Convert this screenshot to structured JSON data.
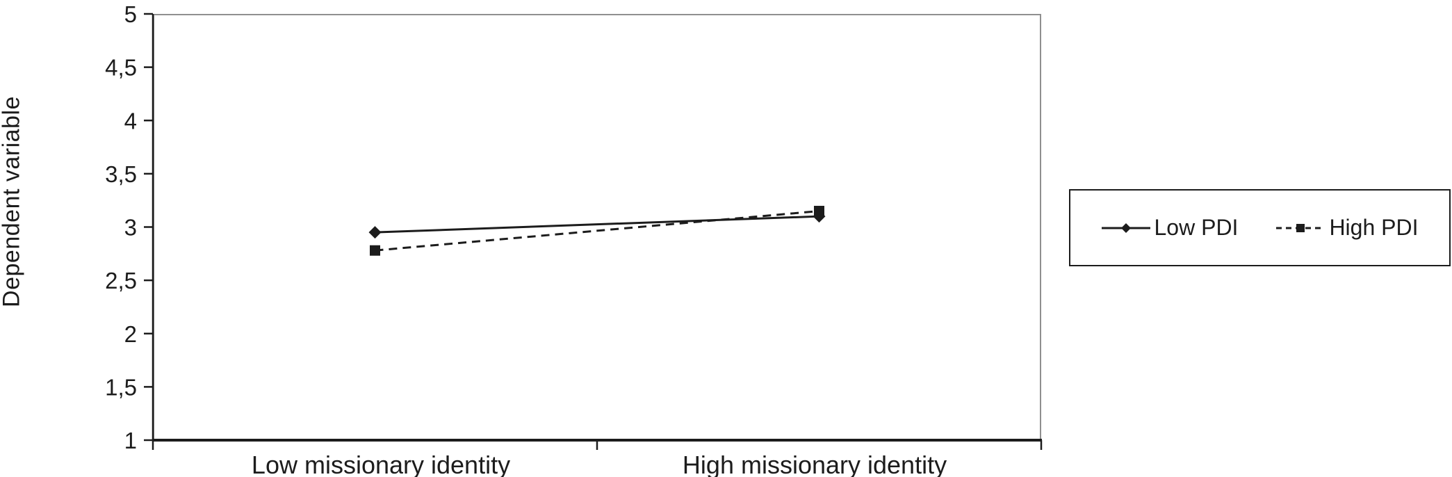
{
  "chart_data": {
    "type": "line",
    "ylabel": "Dependent variable",
    "xlabel": "",
    "categories": [
      "Low missionary identity",
      "High missionary identity"
    ],
    "series": [
      {
        "name": "Low PDI",
        "values": [
          2.95,
          3.1
        ],
        "marker": "diamond",
        "line_style": "solid"
      },
      {
        "name": "High PDI",
        "values": [
          2.78,
          3.15
        ],
        "marker": "square",
        "line_style": "dashed"
      }
    ],
    "ylim": [
      1,
      5
    ],
    "yticks": [
      {
        "value": 5,
        "label": "5"
      },
      {
        "value": 4.5,
        "label": "4,5"
      },
      {
        "value": 4,
        "label": "4"
      },
      {
        "value": 3.5,
        "label": "3,5"
      },
      {
        "value": 3,
        "label": "3"
      },
      {
        "value": 2.5,
        "label": "2,5"
      },
      {
        "value": 2,
        "label": "2"
      },
      {
        "value": 1.5,
        "label": "1,5"
      },
      {
        "value": 1,
        "label": "1"
      }
    ],
    "grid": false,
    "legend_position": "right"
  },
  "colors": {
    "series": "#1c1c1c",
    "axis": "#1c1c1c",
    "text": "#1c1c1c",
    "plot_border": "#8f8f8f",
    "legend_border": "#1c1c1c",
    "background": "#ffffff"
  }
}
